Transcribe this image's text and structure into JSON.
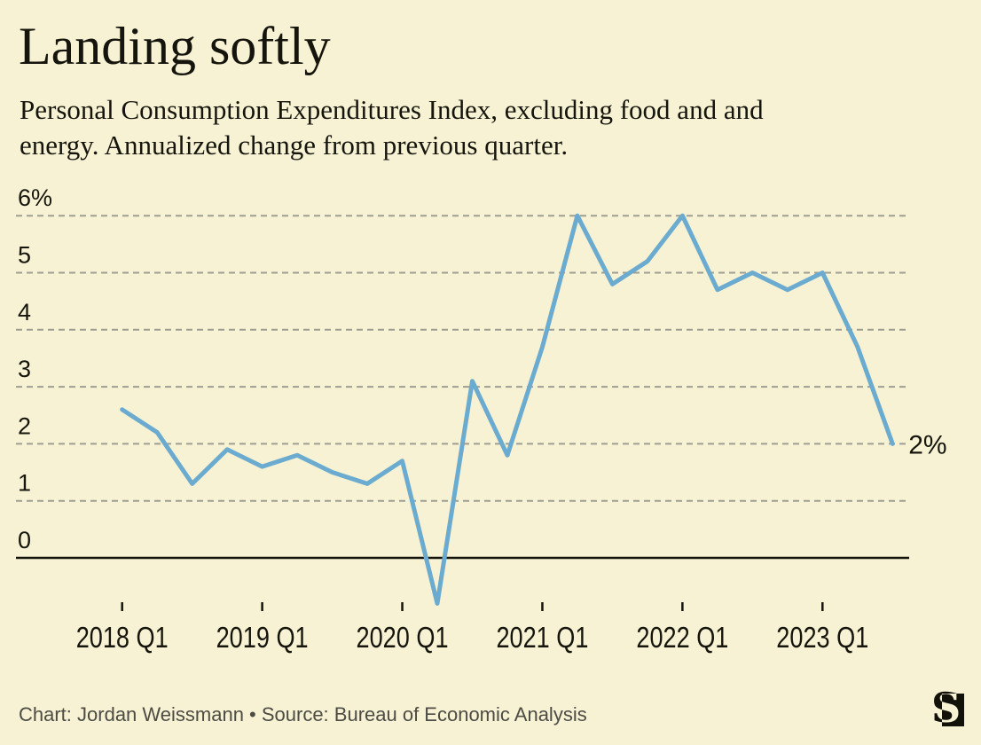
{
  "header": {
    "title": "Landing softly",
    "subtitle_lines": [
      "Personal Consumption Expenditures Index, excluding food and and",
      "energy. Annualized change from previous quarter."
    ]
  },
  "footer": {
    "credit": "Chart: Jordan Weissmann • Source: Bureau of Economic Analysis",
    "logo_letter": "S"
  },
  "colors": {
    "background": "#f7f2d3",
    "line": "#6babd0",
    "grid": "#9e9e92",
    "axis": "#14140d",
    "text": "#15150d",
    "muted": "#4c4c45"
  },
  "chart_data": {
    "type": "line",
    "title": "Landing softly",
    "subtitle": "Personal Consumption Expenditures Index, excluding food and and energy. Annualized change from previous quarter.",
    "xlabel": "",
    "ylabel": "",
    "grid": true,
    "legend": "none",
    "ylim": [
      -1,
      6.5
    ],
    "categories": [
      "2018 Q1",
      "2018 Q2",
      "2018 Q3",
      "2018 Q4",
      "2019 Q1",
      "2019 Q2",
      "2019 Q3",
      "2019 Q4",
      "2020 Q1",
      "2020 Q2",
      "2020 Q3",
      "2020 Q4",
      "2021 Q1",
      "2021 Q2",
      "2021 Q3",
      "2021 Q4",
      "2022 Q1",
      "2022 Q2",
      "2022 Q3",
      "2022 Q4",
      "2023 Q1",
      "2023 Q2",
      "2023 Q3"
    ],
    "values": [
      2.6,
      2.2,
      1.3,
      1.9,
      1.6,
      1.8,
      1.5,
      1.3,
      1.7,
      -0.8,
      3.1,
      1.8,
      3.7,
      6.0,
      4.8,
      5.2,
      6.0,
      4.7,
      5.0,
      4.7,
      5.0,
      3.7,
      2.0
    ],
    "x_tick_labels": [
      "2018 Q1",
      "2019 Q1",
      "2020 Q1",
      "2021 Q1",
      "2022 Q1",
      "2023 Q1"
    ],
    "y_ticks": [
      {
        "value": 6,
        "label": "6%"
      },
      {
        "value": 5,
        "label": "5"
      },
      {
        "value": 4,
        "label": "4"
      },
      {
        "value": 3,
        "label": "3"
      },
      {
        "value": 2,
        "label": "2"
      },
      {
        "value": 1,
        "label": "1"
      },
      {
        "value": 0,
        "label": "0"
      }
    ],
    "end_label": "2%",
    "line_color": "#6babd0"
  }
}
